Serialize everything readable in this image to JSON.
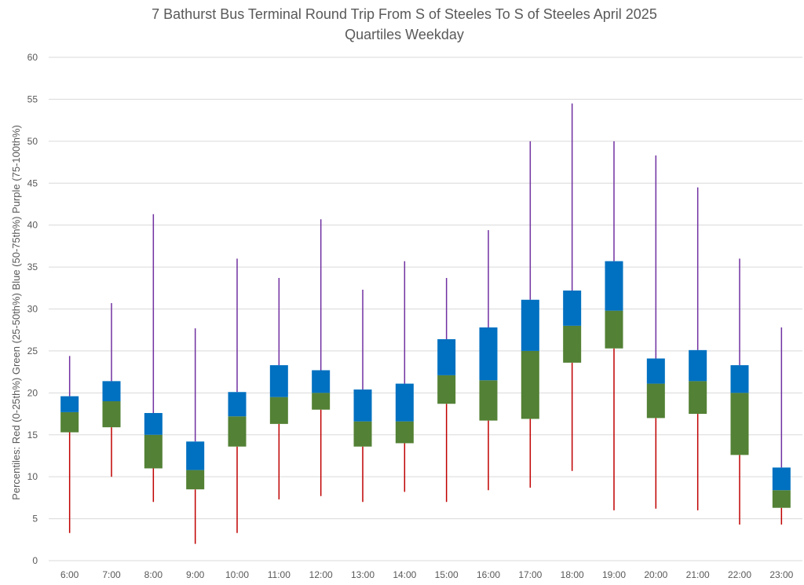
{
  "chart_data": {
    "type": "bar",
    "title": "7 Bathurst Bus Terminal Round Trip From S of Steeles To S of Steeles April 2025",
    "subtitle": "Quartiles Weekday",
    "ylabel": "Percentiles:  Red (0-25th%)  Green (25-50th%)  Blue (50-75th%)  Purple (75-100th%)",
    "xlabel": "",
    "ylim": [
      0,
      60
    ],
    "ytick_step": 5,
    "yticks": [
      "0",
      "5",
      "10",
      "15",
      "20",
      "25",
      "30",
      "35",
      "40",
      "45",
      "50",
      "55",
      "60"
    ],
    "grid": true,
    "categories": [
      "6:00",
      "7:00",
      "8:00",
      "9:00",
      "10:00",
      "11:00",
      "12:00",
      "13:00",
      "14:00",
      "15:00",
      "16:00",
      "17:00",
      "18:00",
      "19:00",
      "20:00",
      "21:00",
      "22:00",
      "23:00"
    ],
    "series": [
      {
        "name": "0th%",
        "values": [
          3.3,
          10.0,
          7.0,
          2.0,
          3.3,
          7.3,
          7.7,
          7.0,
          8.2,
          7.0,
          8.4,
          8.7,
          10.7,
          6.0,
          6.2,
          6.0,
          4.3,
          4.3
        ]
      },
      {
        "name": "25th%",
        "values": [
          15.3,
          15.9,
          11.0,
          8.5,
          13.6,
          16.3,
          18.0,
          13.6,
          14.0,
          18.7,
          16.7,
          16.9,
          23.6,
          25.3,
          17.0,
          17.5,
          12.6,
          6.3
        ]
      },
      {
        "name": "50th%",
        "values": [
          17.7,
          19.0,
          15.0,
          10.8,
          17.2,
          19.5,
          20.0,
          16.6,
          16.6,
          22.1,
          21.5,
          25.0,
          28.0,
          29.8,
          21.1,
          21.4,
          20.0,
          8.4
        ]
      },
      {
        "name": "75th%",
        "values": [
          19.6,
          21.4,
          17.6,
          14.2,
          20.1,
          23.3,
          22.7,
          20.4,
          21.1,
          26.4,
          27.8,
          31.1,
          32.2,
          35.7,
          24.1,
          25.1,
          23.3,
          11.1
        ]
      },
      {
        "name": "100th%",
        "values": [
          24.4,
          30.7,
          41.3,
          27.7,
          36.0,
          33.7,
          40.7,
          32.3,
          35.7,
          33.7,
          39.4,
          50.0,
          54.5,
          50.0,
          48.3,
          44.5,
          36.0,
          27.8
        ]
      }
    ],
    "colors": {
      "low_whisker": "#c00000",
      "lower_box": "#538135",
      "upper_box": "#0070c0",
      "high_whisker": "#7030a0",
      "grid": "#d9d9d9",
      "text": "#595959"
    }
  }
}
